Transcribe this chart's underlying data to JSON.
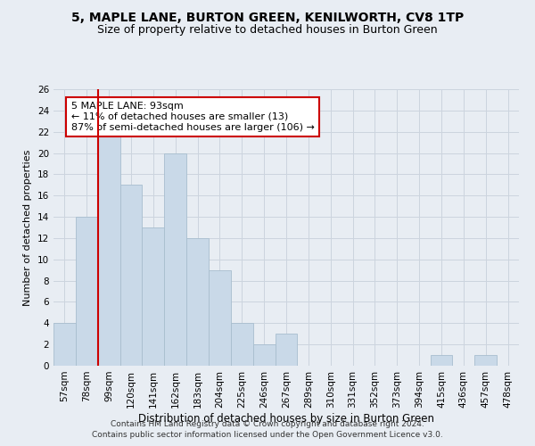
{
  "title": "5, MAPLE LANE, BURTON GREEN, KENILWORTH, CV8 1TP",
  "subtitle": "Size of property relative to detached houses in Burton Green",
  "xlabel": "Distribution of detached houses by size in Burton Green",
  "ylabel": "Number of detached properties",
  "categories": [
    "57sqm",
    "78sqm",
    "99sqm",
    "120sqm",
    "141sqm",
    "162sqm",
    "183sqm",
    "204sqm",
    "225sqm",
    "246sqm",
    "267sqm",
    "289sqm",
    "310sqm",
    "331sqm",
    "352sqm",
    "373sqm",
    "394sqm",
    "415sqm",
    "436sqm",
    "457sqm",
    "478sqm"
  ],
  "values": [
    4,
    14,
    22,
    17,
    13,
    20,
    12,
    9,
    4,
    2,
    3,
    0,
    0,
    0,
    0,
    0,
    0,
    1,
    0,
    1,
    0
  ],
  "bar_color": "#c9d9e8",
  "bar_edgecolor": "#a8bece",
  "bar_linewidth": 0.6,
  "property_line_color": "#cc0000",
  "annotation_line1": "5 MAPLE LANE: 93sqm",
  "annotation_line2": "← 11% of detached houses are smaller (13)",
  "annotation_line3": "87% of semi-detached houses are larger (106) →",
  "annotation_box_edgecolor": "#cc0000",
  "annotation_box_facecolor": "#ffffff",
  "ylim": [
    0,
    26
  ],
  "yticks": [
    0,
    2,
    4,
    6,
    8,
    10,
    12,
    14,
    16,
    18,
    20,
    22,
    24,
    26
  ],
  "grid_color": "#ccd4de",
  "background_color": "#e8edf3",
  "footnote1": "Contains HM Land Registry data © Crown copyright and database right 2024.",
  "footnote2": "Contains public sector information licensed under the Open Government Licence v3.0.",
  "title_fontsize": 10,
  "subtitle_fontsize": 9,
  "xlabel_fontsize": 8.5,
  "ylabel_fontsize": 8,
  "tick_fontsize": 7.5,
  "annotation_fontsize": 8,
  "footnote_fontsize": 6.5
}
